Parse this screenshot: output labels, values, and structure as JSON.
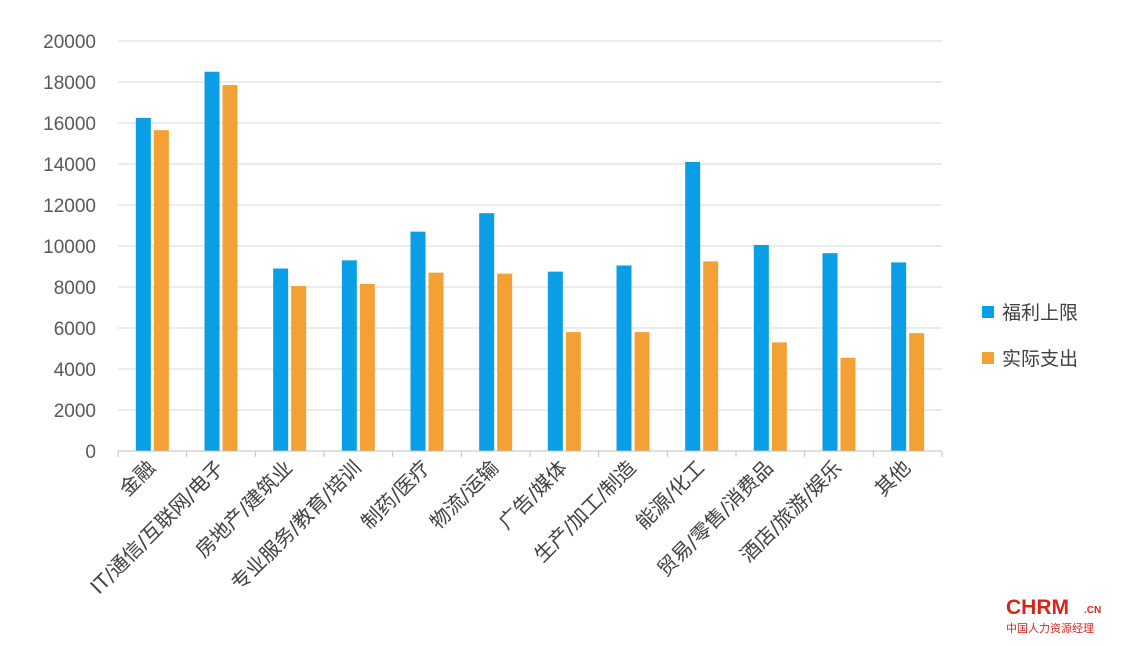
{
  "chart_data": {
    "type": "bar",
    "categories": [
      "金融",
      "IT/通信/互联网/电子",
      "房地产/建筑业",
      "专业服务/教育/培训",
      "制药/医疗",
      "物流/运输",
      "广告/媒体",
      "生产/加工/制造",
      "能源/化工",
      "贸易/零售/消费品",
      "酒店/旅游/娱乐",
      "其他"
    ],
    "series": [
      {
        "name": "福利上限",
        "color": "#0a9ee6",
        "values": [
          16250,
          18500,
          8900,
          9300,
          10700,
          11600,
          8750,
          9050,
          14100,
          10050,
          9650,
          9200
        ]
      },
      {
        "name": "实际支出",
        "color": "#f3a035",
        "values": [
          15650,
          17850,
          8050,
          8150,
          8700,
          8650,
          5800,
          5800,
          9250,
          5300,
          4550,
          5750
        ]
      }
    ],
    "ylim": [
      0,
      20000
    ],
    "yticks": [
      0,
      2000,
      4000,
      6000,
      8000,
      10000,
      12000,
      14000,
      16000,
      18000,
      20000
    ],
    "grid": true,
    "legend": "right",
    "title": "",
    "xlabel": "",
    "ylabel": ""
  },
  "logo": {
    "main": "CHRM",
    "suffix": ".CN",
    "subtitle": "中国人力资源经理"
  }
}
